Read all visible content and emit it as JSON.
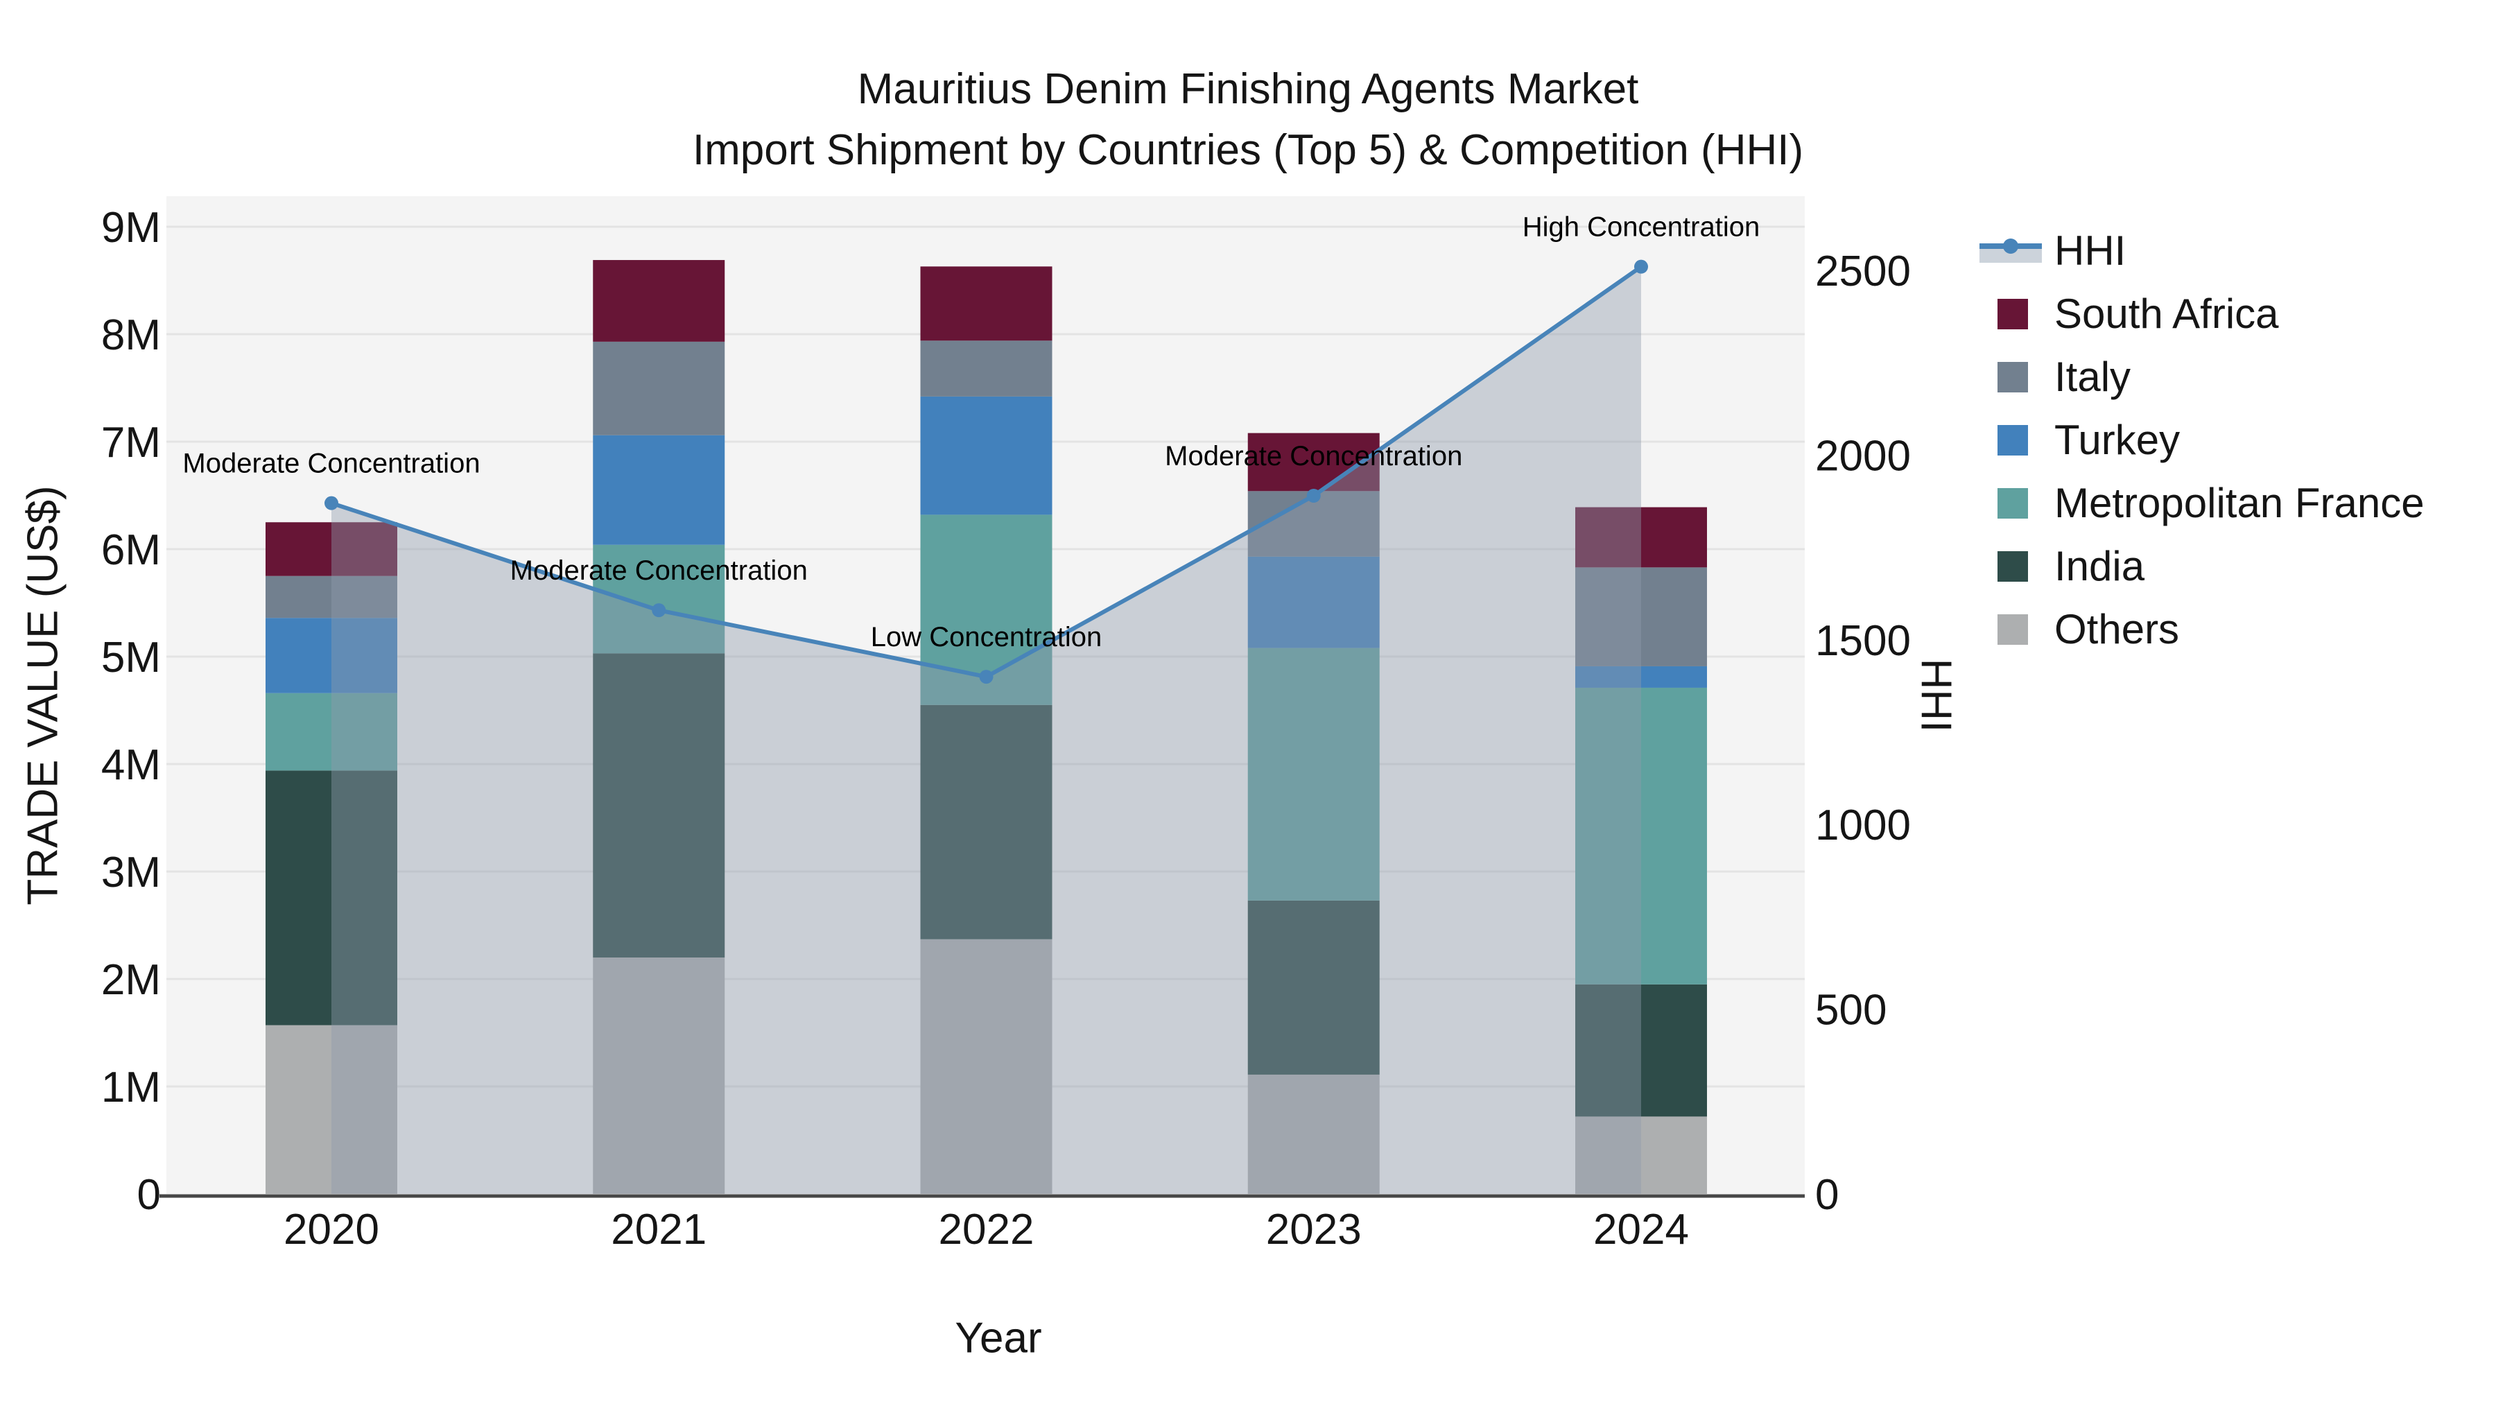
{
  "title": {
    "line1": "Mauritius Denim Finishing Agents Market",
    "line2": "Import Shipment by Countries (Top 5) & Competition (HHI)"
  },
  "axes": {
    "x": {
      "label": "Year",
      "categories": [
        "2020",
        "2021",
        "2022",
        "2023",
        "2024"
      ]
    },
    "y_left": {
      "label": "TRADE VALUE (US$)",
      "ticks": [
        "0",
        "1M",
        "2M",
        "3M",
        "4M",
        "5M",
        "6M",
        "7M",
        "8M",
        "9M"
      ],
      "unit": "US$ millions"
    },
    "y_right": {
      "label": "HHI",
      "ticks": [
        0,
        500,
        1000,
        1500,
        2000,
        2500
      ]
    }
  },
  "chart_data": {
    "type": "bar+line",
    "subtype": "stacked-bar with secondary-axis line and shaded area",
    "categories": [
      "2020",
      "2021",
      "2022",
      "2023",
      "2024"
    ],
    "stack_order_bottom_to_top": [
      "Others",
      "India",
      "Metropolitan France",
      "Turkey",
      "Italy",
      "South Africa"
    ],
    "series": [
      {
        "name": "Others",
        "color": "#ADAFB0",
        "values_millions": [
          1.57,
          2.2,
          2.37,
          1.11,
          0.72
        ]
      },
      {
        "name": "India",
        "color": "#2E4C49",
        "values_millions": [
          2.37,
          2.83,
          2.18,
          1.62,
          1.23
        ]
      },
      {
        "name": "Metropolitan France",
        "color": "#5FA19F",
        "values_millions": [
          0.72,
          1.01,
          1.77,
          2.35,
          2.76
        ]
      },
      {
        "name": "Turkey",
        "color": "#4281BC",
        "values_millions": [
          0.7,
          1.02,
          1.1,
          0.85,
          0.2
        ]
      },
      {
        "name": "Italy",
        "color": "#72808F",
        "values_millions": [
          0.39,
          0.87,
          0.52,
          0.61,
          0.92
        ]
      },
      {
        "name": "South Africa",
        "color": "#671536",
        "values_millions": [
          0.5,
          0.76,
          0.69,
          0.54,
          0.56
        ]
      }
    ],
    "bar_totals_millions": [
      6.25,
      8.69,
      8.63,
      7.08,
      6.39
    ],
    "hhi_line": {
      "name": "HHI",
      "color": "#4884B9",
      "area_fill": "rgba(143,154,171,0.42)",
      "values": [
        1870,
        1580,
        1400,
        1890,
        2510
      ],
      "annotations": [
        "Moderate Concentration",
        "Moderate Concentration",
        "Low Concentration",
        "Moderate Concentration",
        "High Concentration"
      ]
    },
    "ylim_left_millions": [
      0,
      9.3
    ],
    "ylim_right": [
      0,
      2590
    ],
    "grid": "horizontal, 1M steps",
    "legend_position": "right"
  },
  "legend": {
    "items": [
      {
        "label": "HHI",
        "type": "line",
        "color": "#4884B9",
        "band": "#ccd3db"
      },
      {
        "label": "South Africa",
        "type": "square",
        "color": "#671536"
      },
      {
        "label": "Italy",
        "type": "square",
        "color": "#72808F"
      },
      {
        "label": "Turkey",
        "type": "square",
        "color": "#4281BC"
      },
      {
        "label": "Metropolitan France",
        "type": "square",
        "color": "#5FA19F"
      },
      {
        "label": "India",
        "type": "square",
        "color": "#2E4C49"
      },
      {
        "label": "Others",
        "type": "square",
        "color": "#ADAFB0"
      }
    ]
  },
  "style": {
    "plot_bg": "#f4f4f4",
    "gridline": "#e3e3e3",
    "axis_line": "#474747",
    "text": "#151515"
  }
}
